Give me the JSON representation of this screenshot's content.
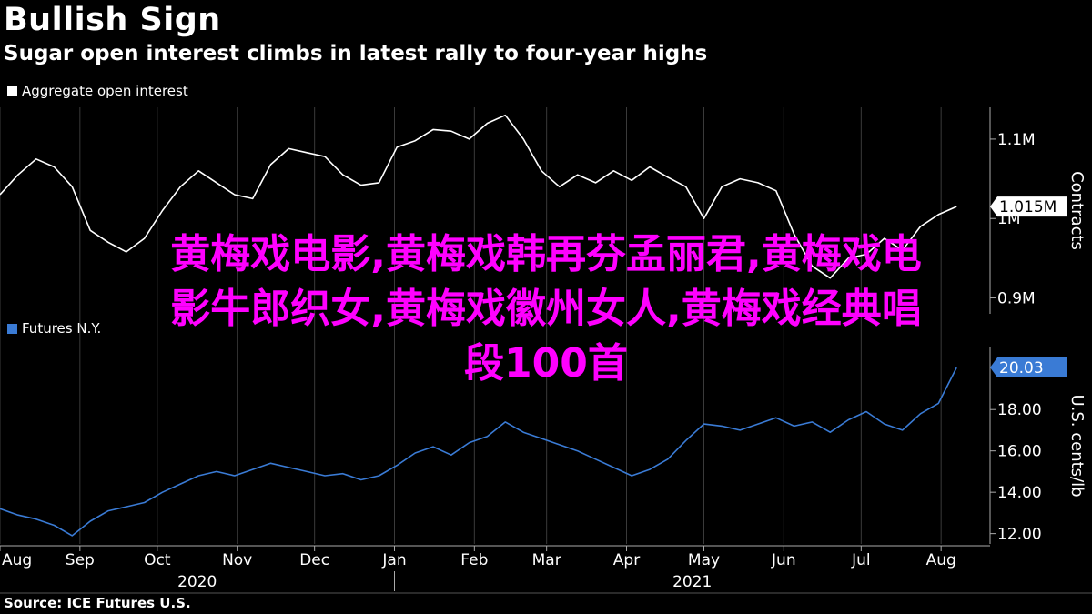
{
  "header": {
    "title": "Bullish Sign",
    "subtitle": "Sugar open interest climbs in latest rally to four-year highs"
  },
  "source": "Source: ICE Futures U.S.",
  "overlay": {
    "line1": "黄梅戏电影,黄梅戏韩再芬孟丽君,黄梅戏电",
    "line2": "影牛郎织女,黄梅戏徽州女人,黄梅戏经典唱",
    "line3": "段100首"
  },
  "colors": {
    "background": "#000000",
    "open_interest": "#ffffff",
    "futures": "#3a7bd5",
    "overlay_text": "#ff00ff"
  },
  "chart_data": [
    {
      "type": "line",
      "legend": "Aggregate open interest",
      "ylabel": "Contracts",
      "ylim": [
        880000,
        1140000
      ],
      "yticks": [
        {
          "value": 900000,
          "label": "0.9M"
        },
        {
          "value": 1000000,
          "label": "1M"
        },
        {
          "value": 1100000,
          "label": "1.1M"
        }
      ],
      "last_value_label": "1.015M",
      "grid": "vertical",
      "legend_position": "top-left",
      "x": [
        "2020-08-01",
        "2020-08-08",
        "2020-08-15",
        "2020-08-22",
        "2020-08-29",
        "2020-09-05",
        "2020-09-12",
        "2020-09-19",
        "2020-09-26",
        "2020-10-03",
        "2020-10-10",
        "2020-10-17",
        "2020-10-24",
        "2020-10-31",
        "2020-11-07",
        "2020-11-14",
        "2020-11-21",
        "2020-11-28",
        "2020-12-05",
        "2020-12-12",
        "2020-12-19",
        "2020-12-26",
        "2021-01-02",
        "2021-01-09",
        "2021-01-16",
        "2021-01-23",
        "2021-01-30",
        "2021-02-06",
        "2021-02-13",
        "2021-02-20",
        "2021-02-27",
        "2021-03-06",
        "2021-03-13",
        "2021-03-20",
        "2021-03-27",
        "2021-04-03",
        "2021-04-10",
        "2021-04-17",
        "2021-04-24",
        "2021-05-01",
        "2021-05-08",
        "2021-05-15",
        "2021-05-22",
        "2021-05-29",
        "2021-06-05",
        "2021-06-12",
        "2021-06-19",
        "2021-06-26",
        "2021-07-03",
        "2021-07-10",
        "2021-07-17",
        "2021-07-24",
        "2021-07-31",
        "2021-08-07"
      ],
      "values": [
        1030000,
        1055000,
        1075000,
        1065000,
        1040000,
        985000,
        970000,
        958000,
        975000,
        1010000,
        1040000,
        1060000,
        1045000,
        1030000,
        1025000,
        1068000,
        1088000,
        1083000,
        1078000,
        1055000,
        1042000,
        1045000,
        1090000,
        1098000,
        1112000,
        1110000,
        1100000,
        1120000,
        1130000,
        1100000,
        1060000,
        1040000,
        1055000,
        1045000,
        1060000,
        1048000,
        1065000,
        1052000,
        1040000,
        1000000,
        1040000,
        1050000,
        1045000,
        1035000,
        980000,
        940000,
        925000,
        950000,
        955000,
        975000,
        960000,
        990000,
        1005000,
        1015000
      ]
    },
    {
      "type": "line",
      "legend": "Futures N.Y.",
      "ylabel": "U.S. cents/lb",
      "ylim": [
        11.5,
        21.0
      ],
      "yticks": [
        {
          "value": 12,
          "label": "12.00"
        },
        {
          "value": 14,
          "label": "14.00"
        },
        {
          "value": 16,
          "label": "16.00"
        },
        {
          "value": 18,
          "label": "18.00"
        }
      ],
      "last_value_label": "20.03",
      "grid": "vertical",
      "x": [
        "2020-08-01",
        "2020-08-08",
        "2020-08-15",
        "2020-08-22",
        "2020-08-29",
        "2020-09-05",
        "2020-09-12",
        "2020-09-19",
        "2020-09-26",
        "2020-10-03",
        "2020-10-10",
        "2020-10-17",
        "2020-10-24",
        "2020-10-31",
        "2020-11-07",
        "2020-11-14",
        "2020-11-21",
        "2020-11-28",
        "2020-12-05",
        "2020-12-12",
        "2020-12-19",
        "2020-12-26",
        "2021-01-02",
        "2021-01-09",
        "2021-01-16",
        "2021-01-23",
        "2021-01-30",
        "2021-02-06",
        "2021-02-13",
        "2021-02-20",
        "2021-02-27",
        "2021-03-06",
        "2021-03-13",
        "2021-03-20",
        "2021-03-27",
        "2021-04-03",
        "2021-04-10",
        "2021-04-17",
        "2021-04-24",
        "2021-05-01",
        "2021-05-08",
        "2021-05-15",
        "2021-05-22",
        "2021-05-29",
        "2021-06-05",
        "2021-06-12",
        "2021-06-19",
        "2021-06-26",
        "2021-07-03",
        "2021-07-10",
        "2021-07-17",
        "2021-07-24",
        "2021-07-31",
        "2021-08-07"
      ],
      "values": [
        13.2,
        12.9,
        12.7,
        12.4,
        11.9,
        12.6,
        13.1,
        13.3,
        13.5,
        14.0,
        14.4,
        14.8,
        15.0,
        14.8,
        15.1,
        15.4,
        15.2,
        15.0,
        14.8,
        14.9,
        14.6,
        14.8,
        15.3,
        15.9,
        16.2,
        15.8,
        16.4,
        16.7,
        17.4,
        16.9,
        16.6,
        16.3,
        16.0,
        15.6,
        15.2,
        14.8,
        15.1,
        15.6,
        16.5,
        17.3,
        17.2,
        17.0,
        17.3,
        17.6,
        17.2,
        17.4,
        16.9,
        17.5,
        17.9,
        17.3,
        17.0,
        17.8,
        18.3,
        20.03
      ]
    }
  ],
  "x_axis": {
    "months": [
      {
        "date": "2020-08-01",
        "label": "Aug"
      },
      {
        "date": "2020-09-01",
        "label": "Sep"
      },
      {
        "date": "2020-10-01",
        "label": "Oct"
      },
      {
        "date": "2020-11-01",
        "label": "Nov"
      },
      {
        "date": "2020-12-01",
        "label": "Dec"
      },
      {
        "date": "2021-01-01",
        "label": "Jan"
      },
      {
        "date": "2021-02-01",
        "label": "Feb"
      },
      {
        "date": "2021-03-01",
        "label": "Mar"
      },
      {
        "date": "2021-04-01",
        "label": "Apr"
      },
      {
        "date": "2021-05-01",
        "label": "May"
      },
      {
        "date": "2021-06-01",
        "label": "Jun"
      },
      {
        "date": "2021-07-01",
        "label": "Jul"
      },
      {
        "date": "2021-08-01",
        "label": "Aug"
      }
    ],
    "years": [
      {
        "label": "2020",
        "start": "2020-08-01",
        "end": "2021-01-01"
      },
      {
        "label": "2021",
        "start": "2021-01-01",
        "end": "2021-08-20"
      }
    ],
    "start": "2020-08-01",
    "end": "2021-08-20"
  }
}
